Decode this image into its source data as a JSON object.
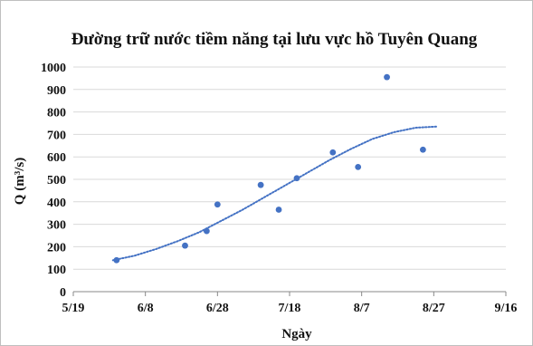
{
  "chart_data": {
    "type": "scatter",
    "title": "Đường trữ nước tiềm năng tại lưu vực hồ Tuyên Quang",
    "xlabel": "Ngày",
    "ylabel": "Q (m³/s)",
    "xlim": [
      "5/19",
      "9/16"
    ],
    "ylim": [
      0,
      1000
    ],
    "x_ticks": [
      "5/19",
      "6/8",
      "6/28",
      "7/18",
      "8/7",
      "8/27",
      "9/16"
    ],
    "y_ticks": [
      0,
      100,
      200,
      300,
      400,
      500,
      600,
      700,
      800,
      900,
      1000
    ],
    "grid": "horizontal",
    "legend": "none",
    "series": [
      {
        "kind": "points",
        "color": "#4472c4",
        "x": [
          "5/31",
          "6/19",
          "6/25",
          "6/28",
          "7/10",
          "7/15",
          "7/20",
          "7/30",
          "8/6",
          "8/14",
          "8/24"
        ],
        "y": [
          140,
          205,
          270,
          388,
          475,
          365,
          505,
          620,
          555,
          955,
          632
        ]
      },
      {
        "kind": "trendline",
        "style": "dotted",
        "color": "#4472c4",
        "x": [
          "5/30",
          "6/5",
          "6/11",
          "6/17",
          "6/23",
          "6/29",
          "7/5",
          "7/11",
          "7/17",
          "7/23",
          "7/29",
          "8/4",
          "8/10",
          "8/16",
          "8/22",
          "8/28"
        ],
        "y": [
          140,
          160,
          190,
          225,
          265,
          315,
          365,
          420,
          475,
          530,
          585,
          635,
          680,
          710,
          730,
          735
        ]
      }
    ]
  }
}
